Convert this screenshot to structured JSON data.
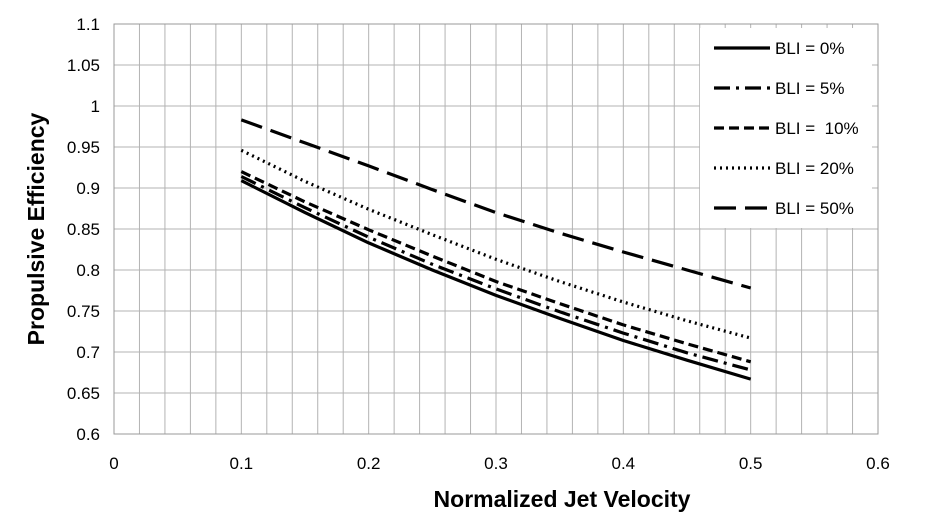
{
  "chart_data": {
    "type": "line",
    "title": "",
    "xlabel": "Normalized Jet Velocity",
    "ylabel": "Propulsive Efficiency",
    "xlim": [
      0,
      0.6
    ],
    "ylim": [
      0.6,
      1.1
    ],
    "x_ticks": [
      "0",
      "0.1",
      "0.2",
      "0.3",
      "0.4",
      "0.5",
      "0.6"
    ],
    "y_ticks": [
      "0.6",
      "0.65",
      "0.7",
      "0.75",
      "0.8",
      "0.85",
      "0.9",
      "0.95",
      "1",
      "1.05",
      "1.1"
    ],
    "grid": true,
    "legend_position": "top-right",
    "x": [
      0.1,
      0.15,
      0.2,
      0.25,
      0.3,
      0.35,
      0.4,
      0.45,
      0.5
    ],
    "series": [
      {
        "name": "BLI = 0%",
        "dash": "solid",
        "values": [
          0.909,
          0.87,
          0.833,
          0.8,
          0.769,
          0.741,
          0.714,
          0.69,
          0.667
        ]
      },
      {
        "name": "BLI = 5%",
        "dash": "dash-dot",
        "values": [
          0.914,
          0.876,
          0.84,
          0.807,
          0.777,
          0.749,
          0.723,
          0.699,
          0.678
        ]
      },
      {
        "name": "BLI =  10%",
        "dash": "dash",
        "values": [
          0.92,
          0.883,
          0.849,
          0.817,
          0.786,
          0.759,
          0.733,
          0.71,
          0.688
        ]
      },
      {
        "name": "BLI = 20%",
        "dash": "dot",
        "values": [
          0.946,
          0.908,
          0.874,
          0.843,
          0.813,
          0.786,
          0.761,
          0.738,
          0.717
        ]
      },
      {
        "name": "BLI = 50%",
        "dash": "long-dash",
        "values": [
          0.983,
          0.955,
          0.927,
          0.898,
          0.87,
          0.845,
          0.822,
          0.8,
          0.778
        ]
      }
    ]
  }
}
